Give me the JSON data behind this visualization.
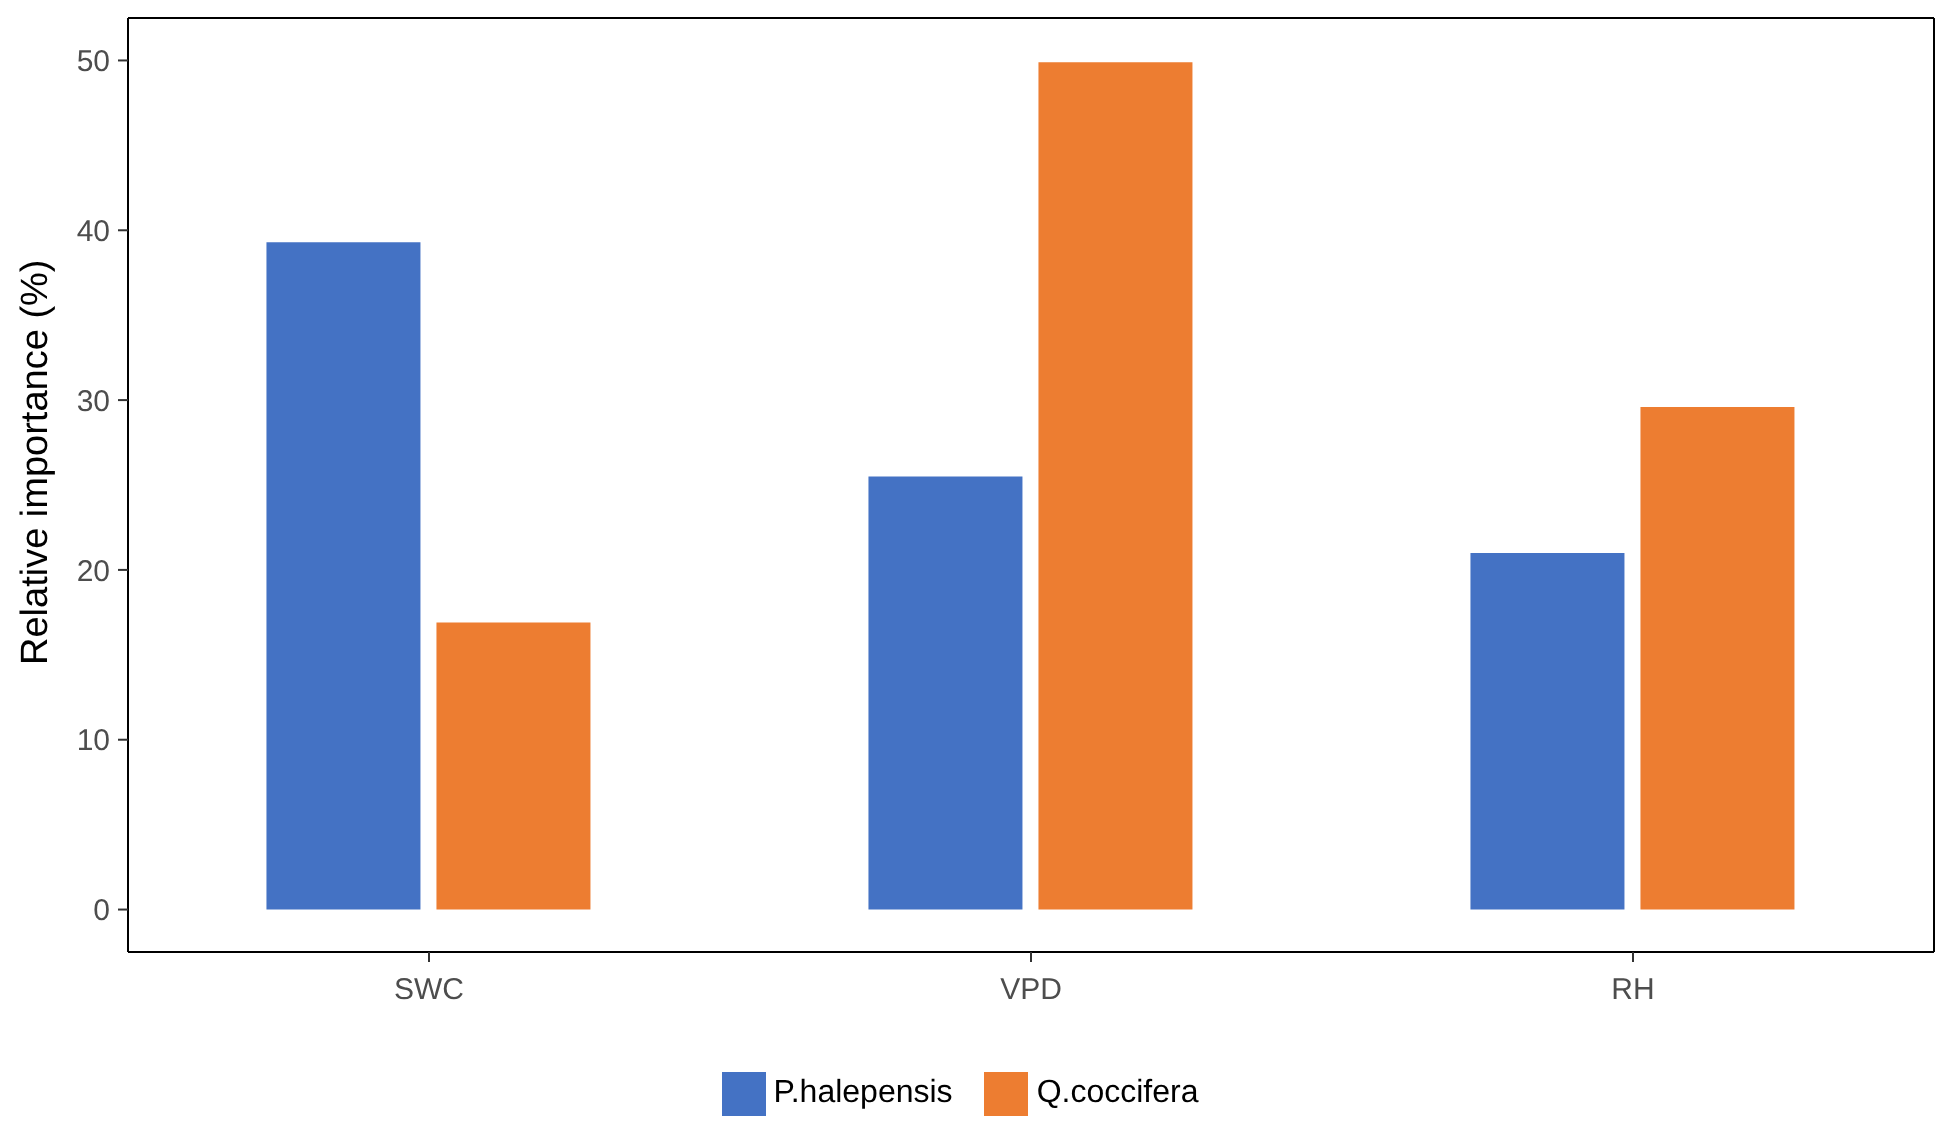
{
  "chart_data": {
    "type": "bar",
    "ylabel": "Relative importance (%)",
    "categories": [
      "SWC",
      "VPD",
      "RH"
    ],
    "series": [
      {
        "name": "P.halepensis",
        "color": "#4472c4",
        "values": [
          39.3,
          25.5,
          21.0
        ]
      },
      {
        "name": "Q.coccifera",
        "color": "#ed7d31",
        "values": [
          16.9,
          49.9,
          29.6
        ]
      }
    ],
    "ylim": [
      -2.5,
      52.5
    ],
    "yticks": [
      0,
      10,
      20,
      30,
      40,
      50
    ],
    "legend": "bottom"
  }
}
